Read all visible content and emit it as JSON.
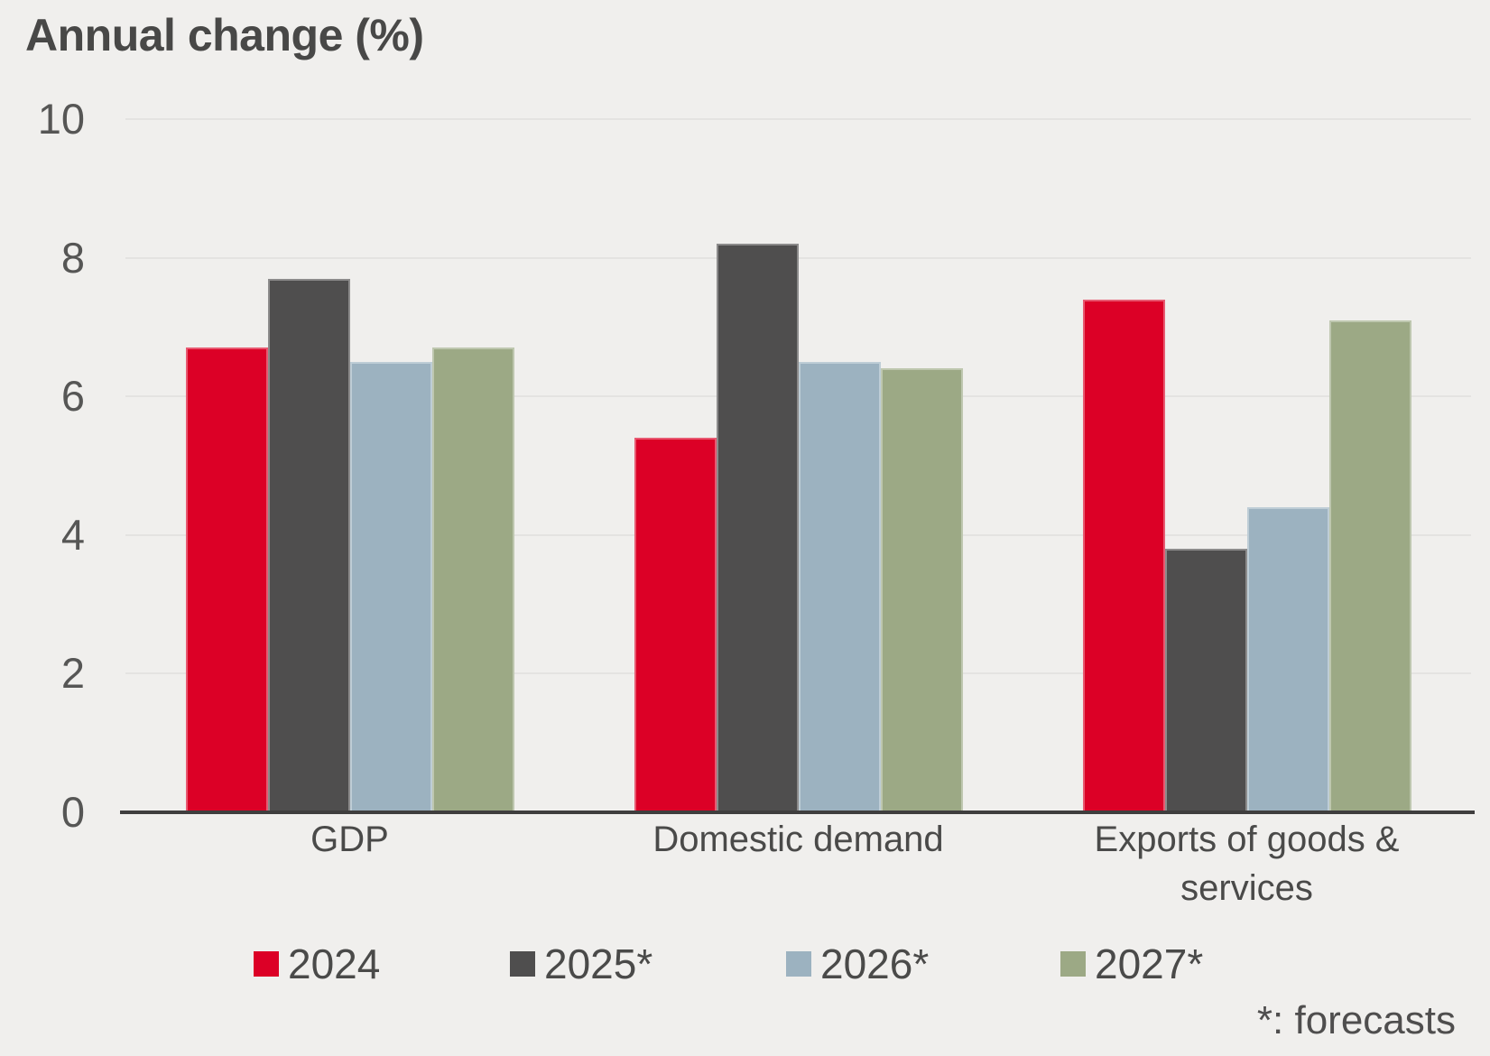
{
  "title": "Annual change (%)",
  "footnote": "*: forecasts",
  "colors": {
    "background": "#f0efed",
    "gridline": "#e4e3e1",
    "axis": "#3f3e3e",
    "title_text": "#484847",
    "tick_text": "#565655",
    "label_text": "#4a4a49"
  },
  "chart_data": {
    "type": "bar",
    "title": "Annual change (%)",
    "categories": [
      "GDP",
      "Domestic demand",
      "Exports of goods & services"
    ],
    "series": [
      {
        "name": "2024",
        "color": "#dc0026",
        "values": [
          6.7,
          5.4,
          7.4
        ]
      },
      {
        "name": "2025*",
        "color": "#4f4e4e",
        "values": [
          7.7,
          8.2,
          3.8
        ]
      },
      {
        "name": "2026*",
        "color": "#9cb2c0",
        "values": [
          6.5,
          6.5,
          4.4
        ]
      },
      {
        "name": "2027*",
        "color": "#9ca985",
        "values": [
          6.7,
          6.4,
          7.1
        ]
      }
    ],
    "xlabel": "",
    "ylabel": "",
    "ylim": [
      0,
      10
    ],
    "yticks": [
      0,
      2,
      4,
      6,
      8,
      10
    ],
    "grid": true,
    "legend_position": "bottom",
    "annotations": [
      "*: forecasts"
    ]
  }
}
